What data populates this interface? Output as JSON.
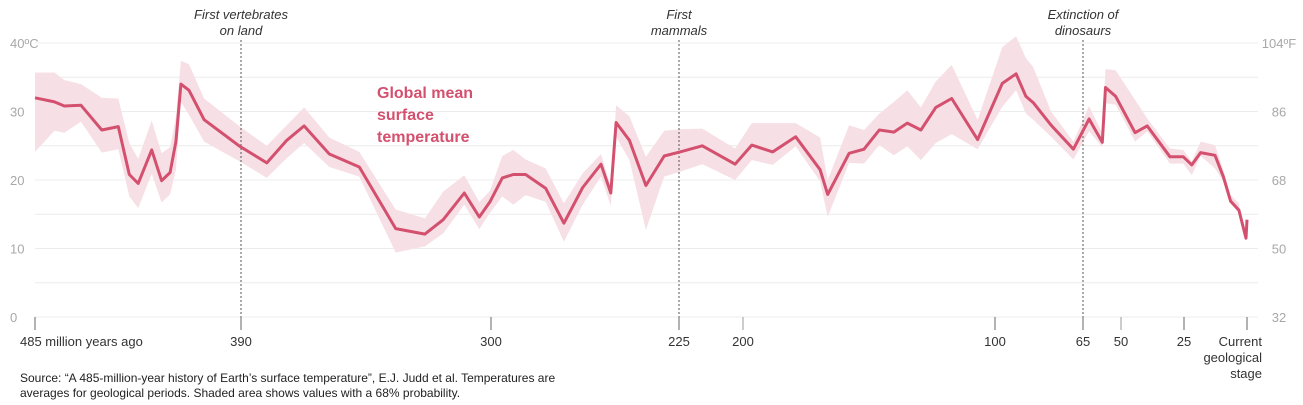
{
  "chart_data": {
    "type": "area",
    "title": "",
    "xlabel": "",
    "ylabel": "",
    "x_direction": "reversed",
    "xlim": [
      485,
      0
    ],
    "ylim": [
      0,
      40
    ],
    "grid": true,
    "y_ticks": [
      {
        "value": 40,
        "label": "40ºC"
      },
      {
        "value": 30,
        "label": "30"
      },
      {
        "value": 20,
        "label": "20"
      },
      {
        "value": 10,
        "label": "10"
      },
      {
        "value": 0,
        "label": "0"
      }
    ],
    "y2_ticks": [
      {
        "value": 40,
        "label": "104ºF"
      },
      {
        "value": 30,
        "label": "86"
      },
      {
        "value": 20,
        "label": "68"
      },
      {
        "value": 10,
        "label": "50"
      },
      {
        "value": 0,
        "label": "32"
      }
    ],
    "x_ticks": [
      {
        "value": 485,
        "label": "485 million years ago"
      },
      {
        "value": 390,
        "label": "390"
      },
      {
        "value": 300,
        "label": "300"
      },
      {
        "value": 225,
        "label": "225"
      },
      {
        "value": 200,
        "label": "200"
      },
      {
        "value": 100,
        "label": "100"
      },
      {
        "value": 65,
        "label": "65"
      },
      {
        "value": 50,
        "label": "50"
      },
      {
        "value": 25,
        "label": "25"
      },
      {
        "value": 0,
        "label": "Current\ngeological\nstage"
      }
    ],
    "annotations": [
      {
        "x": 390,
        "lines": [
          "First vertebrates",
          "on land"
        ]
      },
      {
        "x": 225,
        "lines": [
          "First",
          "mammals"
        ]
      },
      {
        "x": 65,
        "lines": [
          "Extinction of",
          "dinosaurs"
        ]
      }
    ],
    "series": [
      {
        "name": "Global mean surface temperature",
        "name_lines": [
          "Global mean",
          "surface",
          "temperature"
        ],
        "color": "#d4506f",
        "band_color": "#f7e0e5",
        "points": [
          [
            485,
            32.0,
            35.7,
            24.1
          ],
          [
            476,
            31.4,
            35.7,
            27.2
          ],
          [
            471.5,
            30.8,
            34.6,
            26.9
          ],
          [
            463.8,
            30.9,
            34.0,
            28.5
          ],
          [
            454.2,
            27.3,
            32.0,
            24.0
          ],
          [
            446.6,
            27.8,
            31.9,
            24.5
          ],
          [
            441.5,
            20.8,
            25.4,
            17.6
          ],
          [
            437.4,
            19.5,
            23.1,
            15.9
          ],
          [
            431.2,
            24.4,
            28.7,
            20.9
          ],
          [
            426.6,
            19.9,
            23.9,
            16.7
          ],
          [
            422.7,
            21.1,
            24.8,
            17.9
          ],
          [
            420,
            25.6,
            29.2,
            21.5
          ],
          [
            417.7,
            34.0,
            37.4,
            31.4
          ],
          [
            414,
            33.1,
            36.9,
            29.5
          ],
          [
            407,
            28.8,
            31.9,
            25.6
          ],
          [
            390.5,
            24.9,
            27.8,
            22.7
          ],
          [
            380.7,
            22.5,
            25.0,
            20.3
          ],
          [
            373.5,
            25.8,
            28.0,
            23.2
          ],
          [
            367.3,
            27.9,
            30.6,
            25.4
          ],
          [
            358.2,
            23.8,
            26.2,
            21.9
          ],
          [
            347.4,
            21.9,
            24.1,
            20.5
          ],
          [
            334.3,
            12.9,
            15.7,
            9.4
          ],
          [
            323.8,
            12.1,
            14.4,
            10.3
          ],
          [
            317.2,
            14.2,
            18.3,
            12.2
          ],
          [
            309.6,
            18.1,
            20.7,
            16.4
          ],
          [
            304.2,
            14.6,
            16.8,
            12.8
          ],
          [
            300.4,
            16.8,
            18.4,
            15.2
          ],
          [
            295.5,
            20.3,
            23.5,
            17.6
          ],
          [
            291.1,
            20.8,
            24.4,
            16.4
          ],
          [
            286.2,
            20.8,
            23.0,
            17.8
          ],
          [
            278.2,
            18.8,
            21.7,
            16.8
          ],
          [
            270.9,
            13.7,
            16.6,
            11.0
          ],
          [
            263.4,
            18.9,
            21.0,
            16.4
          ],
          [
            256.1,
            22.3,
            23.8,
            20.5
          ],
          [
            252.2,
            18.1,
            19.0,
            16.2
          ],
          [
            250.1,
            28.4,
            30.9,
            26.3
          ],
          [
            244.8,
            25.8,
            29.3,
            22.9
          ],
          [
            238.2,
            19.2,
            23.4,
            12.7
          ],
          [
            230.9,
            23.5,
            27.2,
            20.5
          ],
          [
            224.6,
            24.1,
            27.4,
            21.2
          ],
          [
            215.9,
            25.0,
            27.5,
            22.3
          ],
          [
            203.1,
            22.3,
            24.6,
            20.0
          ],
          [
            196.5,
            25.1,
            28.3,
            22.9
          ],
          [
            188.2,
            24.1,
            28.3,
            22.2
          ],
          [
            179.1,
            26.3,
            28.3,
            24.9
          ],
          [
            169.4,
            21.5,
            26.2,
            19.8
          ],
          [
            166.4,
            17.9,
            20.0,
            14.6
          ],
          [
            157.9,
            23.9,
            28.0,
            22.5
          ],
          [
            152,
            24.5,
            27.3,
            22.4
          ],
          [
            145.9,
            27.3,
            29.7,
            25.1
          ],
          [
            140.1,
            27.0,
            31.4,
            23.6
          ],
          [
            134.8,
            28.3,
            33.1,
            24.9
          ],
          [
            129.4,
            27.3,
            30.6,
            22.9
          ],
          [
            123.5,
            30.6,
            34.4,
            25.4
          ],
          [
            117.2,
            31.9,
            36.8,
            26.7
          ],
          [
            106.9,
            25.9,
            28.8,
            24.5
          ],
          [
            97.1,
            34.1,
            39.4,
            30.7
          ],
          [
            91.6,
            35.5,
            41.0,
            33.1
          ],
          [
            87.7,
            32.2,
            37.8,
            29.7
          ],
          [
            84.8,
            31.3,
            36.5,
            28.8
          ],
          [
            77.7,
            28.0,
            30.0,
            26.3
          ],
          [
            68.8,
            24.5,
            25.6,
            23.0
          ],
          [
            62.6,
            28.9,
            30.8,
            27.1
          ],
          [
            57.4,
            25.5,
            26.8,
            24.8
          ],
          [
            56.1,
            33.5,
            36.2,
            31.2
          ],
          [
            52.1,
            32.2,
            36.0,
            31.0
          ],
          [
            44.4,
            26.9,
            31.7,
            25.6
          ],
          [
            39.6,
            27.9,
            29.0,
            27.1
          ],
          [
            30.6,
            23.4,
            24.6,
            22.4
          ],
          [
            25.3,
            23.4,
            24.4,
            22.4
          ],
          [
            21.9,
            22.2,
            22.7,
            20.7
          ],
          [
            18.4,
            24.0,
            25.6,
            23.5
          ],
          [
            12.7,
            23.6,
            25.1,
            21.7
          ],
          [
            9.4,
            20.5,
            21.5,
            19.8
          ],
          [
            6.5,
            16.9,
            17.8,
            16.6
          ],
          [
            3.2,
            15.6,
            16.6,
            15.1
          ],
          [
            0.4,
            11.5,
            11.8,
            11.2
          ],
          [
            0,
            14.2,
            14.4,
            14.0
          ]
        ],
        "point_fields": [
          "million_years_ago",
          "mean_c",
          "upper_c",
          "lower_c"
        ]
      }
    ],
    "source_lines": [
      "Source: “A 485-million-year history of Earth’s surface temperature”, E.J. Judd et al. Temperatures are",
      "averages for geological periods. Shaded area shows values with a 68% probability."
    ]
  }
}
